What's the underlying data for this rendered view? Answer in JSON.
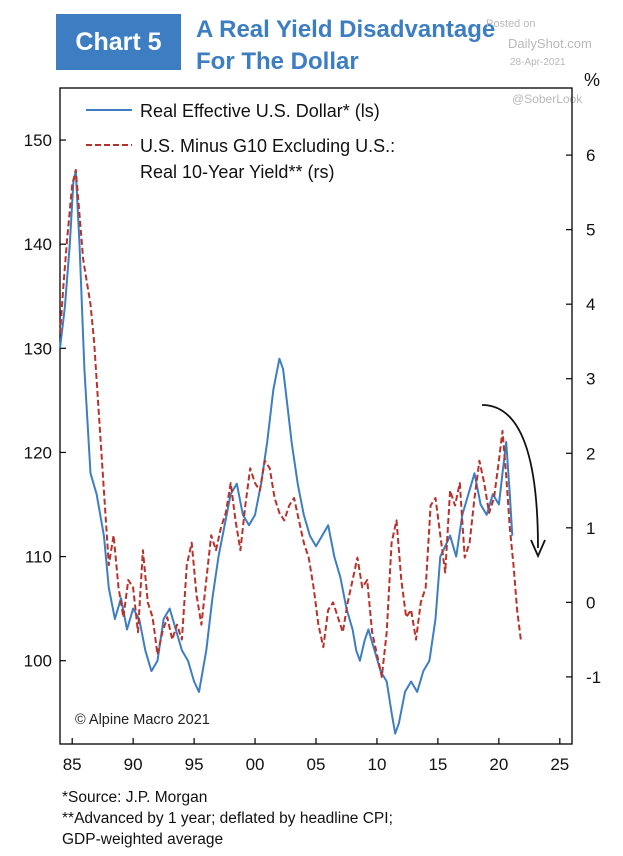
{
  "header": {
    "badge": "Chart 5",
    "title_line1": "A Real Yield Disadvantage",
    "title_line2": "For The Dollar"
  },
  "watermark": {
    "line1": "Posted on",
    "line2": "DailyShot.com",
    "line3": "28-Apr-2021",
    "line4": "@SoberLook"
  },
  "right_axis_unit": "%",
  "copyright": "© Alpine Macro 2021",
  "footer": {
    "line1": "*Source: J.P. Morgan",
    "line2": "**Advanced by 1 year; deflated by headline CPI;",
    "line3": "GDP-weighted average"
  },
  "colors": {
    "dollar": "#3d7ec2",
    "yield": "#b8322c",
    "arrow": "#111111",
    "badge": "#3d7ec2"
  },
  "chart_data": {
    "type": "line",
    "x_tick_labels": [
      "85",
      "90",
      "95",
      "00",
      "05",
      "10",
      "15",
      "20",
      "25"
    ],
    "x_ticks": [
      1985,
      1990,
      1995,
      2000,
      2005,
      2010,
      2015,
      2020,
      2025
    ],
    "xlim": [
      1984,
      2026
    ],
    "y_left": {
      "lim": [
        92,
        155
      ],
      "ticks": [
        100,
        110,
        120,
        130,
        140,
        150
      ]
    },
    "y_right": {
      "lim": [
        -1.9,
        6.9
      ],
      "ticks": [
        -1,
        0,
        1,
        2,
        3,
        4,
        5,
        6
      ]
    },
    "grid": false,
    "legend_position": "top-left",
    "annotation": "downward curved arrow over 2019-2023",
    "series": [
      {
        "name": "Real Effective U.S. Dollar* (ls)",
        "axis": "left",
        "style": "solid",
        "x": [
          1984.0,
          1984.4,
          1984.8,
          1985.1,
          1985.3,
          1985.6,
          1986.0,
          1986.5,
          1987.0,
          1987.6,
          1988.0,
          1988.5,
          1989.0,
          1989.5,
          1990.0,
          1990.5,
          1991.0,
          1991.5,
          1992.0,
          1992.5,
          1993.0,
          1993.5,
          1994.0,
          1994.5,
          1995.0,
          1995.4,
          1996.0,
          1996.5,
          1997.0,
          1997.5,
          1998.0,
          1998.5,
          1999.0,
          1999.5,
          2000.0,
          2000.5,
          2001.0,
          2001.5,
          2002.0,
          2002.3,
          2002.7,
          2003.0,
          2003.5,
          2004.0,
          2004.5,
          2005.0,
          2005.5,
          2006.0,
          2006.5,
          2007.0,
          2007.5,
          2008.0,
          2008.3,
          2008.6,
          2009.0,
          2009.3,
          2009.8,
          2010.3,
          2010.8,
          2011.2,
          2011.5,
          2011.8,
          2012.3,
          2012.8,
          2013.3,
          2013.8,
          2014.3,
          2014.8,
          2015.2,
          2015.6,
          2016.0,
          2016.5,
          2017.0,
          2017.5,
          2018.0,
          2018.5,
          2019.0,
          2019.5,
          2020.0,
          2020.3,
          2020.6,
          2020.9,
          2021.1
        ],
        "y": [
          130,
          134,
          140,
          146,
          147,
          140,
          128,
          118,
          116,
          112,
          107,
          104,
          106,
          103,
          105,
          104,
          101,
          99,
          100,
          104,
          105,
          103,
          101,
          100,
          98,
          97,
          101,
          106,
          110,
          113,
          116,
          117,
          114,
          113,
          114,
          117,
          121,
          126,
          129,
          128,
          124,
          121,
          117,
          114,
          112,
          111,
          112,
          113,
          110,
          108,
          105,
          103,
          101,
          100,
          102,
          103,
          101,
          99,
          98,
          95,
          93,
          94,
          97,
          98,
          97,
          99,
          100,
          104,
          110,
          111,
          112,
          110,
          114,
          116,
          118,
          115,
          114,
          116,
          115,
          118,
          121,
          116,
          112
        ]
      },
      {
        "name": "U.S. Minus G10 Excluding U.S.: Real 10-Year Yield** (rs)",
        "axis": "right",
        "style": "dashed",
        "x": [
          1984.0,
          1984.3,
          1984.6,
          1985.0,
          1985.3,
          1985.6,
          1985.9,
          1986.2,
          1986.5,
          1986.8,
          1987.2,
          1987.6,
          1988.0,
          1988.4,
          1988.8,
          1989.2,
          1989.6,
          1990.0,
          1990.4,
          1990.8,
          1991.2,
          1991.6,
          1992.0,
          1992.4,
          1992.8,
          1993.2,
          1993.6,
          1994.0,
          1994.4,
          1994.8,
          1995.2,
          1995.6,
          1996.0,
          1996.4,
          1996.8,
          1997.2,
          1997.6,
          1998.0,
          1998.4,
          1998.8,
          1999.2,
          1999.6,
          2000.0,
          2000.4,
          2000.8,
          2001.2,
          2001.6,
          2002.0,
          2002.4,
          2002.8,
          2003.2,
          2003.6,
          2004.0,
          2004.4,
          2004.8,
          2005.2,
          2005.6,
          2006.0,
          2006.4,
          2006.8,
          2007.2,
          2007.6,
          2008.0,
          2008.4,
          2008.8,
          2009.2,
          2009.6,
          2010.0,
          2010.4,
          2010.8,
          2011.2,
          2011.6,
          2012.0,
          2012.4,
          2012.8,
          2013.2,
          2013.6,
          2014.0,
          2014.4,
          2014.8,
          2015.2,
          2015.6,
          2016.0,
          2016.4,
          2016.8,
          2017.2,
          2017.6,
          2018.0,
          2018.4,
          2018.8,
          2019.2,
          2019.6,
          2020.0,
          2020.3,
          2020.6,
          2020.9,
          2021.2,
          2021.5,
          2021.8
        ],
        "y": [
          3.6,
          4.3,
          4.9,
          5.6,
          5.8,
          5.2,
          4.6,
          4.3,
          4.0,
          3.5,
          2.5,
          1.5,
          0.5,
          0.9,
          0.2,
          -0.2,
          0.3,
          0.2,
          -0.4,
          0.7,
          0.0,
          -0.2,
          -0.7,
          -0.4,
          -0.2,
          -0.5,
          -0.3,
          -0.5,
          0.5,
          0.8,
          0.1,
          -0.3,
          0.3,
          0.9,
          0.7,
          1.0,
          1.2,
          1.6,
          1.1,
          0.7,
          1.3,
          1.8,
          1.6,
          1.5,
          1.9,
          1.8,
          1.4,
          1.2,
          1.1,
          1.3,
          1.4,
          1.1,
          0.8,
          0.6,
          0.2,
          -0.3,
          -0.6,
          -0.1,
          0.0,
          -0.2,
          -0.4,
          0.0,
          0.3,
          0.6,
          0.2,
          0.3,
          -0.4,
          -0.7,
          -1.0,
          -0.4,
          0.8,
          1.1,
          0.3,
          -0.2,
          -0.1,
          -0.5,
          0.0,
          0.2,
          1.3,
          1.4,
          0.9,
          0.4,
          1.5,
          1.3,
          1.6,
          0.6,
          0.8,
          1.4,
          1.9,
          1.6,
          1.2,
          1.4,
          1.9,
          2.3,
          1.7,
          1.0,
          0.5,
          -0.1,
          -0.5
        ]
      }
    ]
  }
}
